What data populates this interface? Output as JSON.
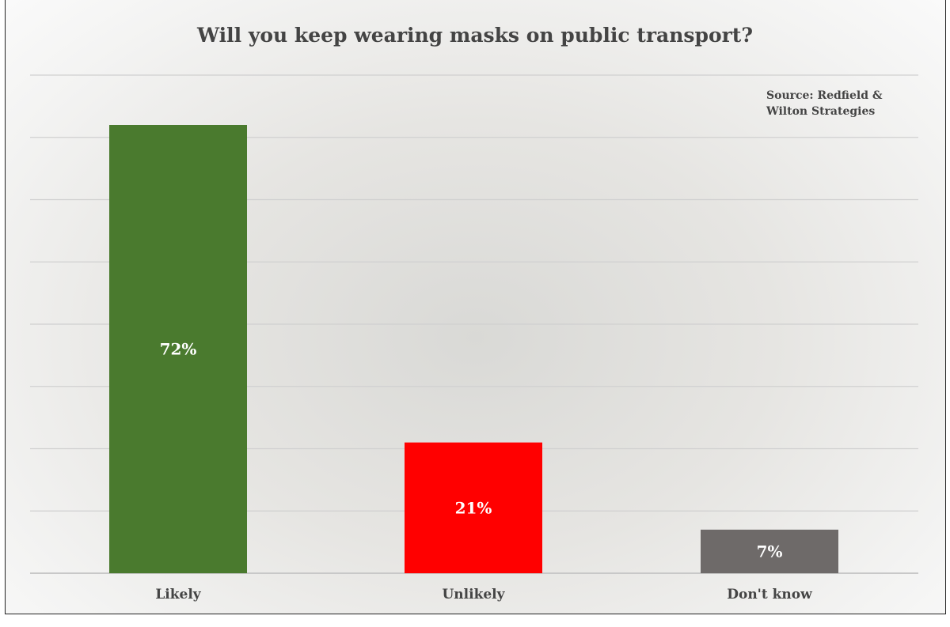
{
  "chart_data": {
    "type": "bar",
    "title": "Will you keep wearing masks on public transport?",
    "annotation": "Source: Redfield & Wilton Strategies",
    "categories": [
      "Likely",
      "Unlikely",
      "Don't know"
    ],
    "values": [
      72,
      21,
      7
    ],
    "data_labels": [
      "72%",
      "21%",
      "7%"
    ],
    "colors": [
      "#4a7a2e",
      "#ff0000",
      "#6e6a69"
    ],
    "xlabel": "",
    "ylabel": "",
    "ylim": [
      0,
      80
    ],
    "grid": true,
    "grid_step": 10,
    "y_tick_labels_shown": false
  }
}
